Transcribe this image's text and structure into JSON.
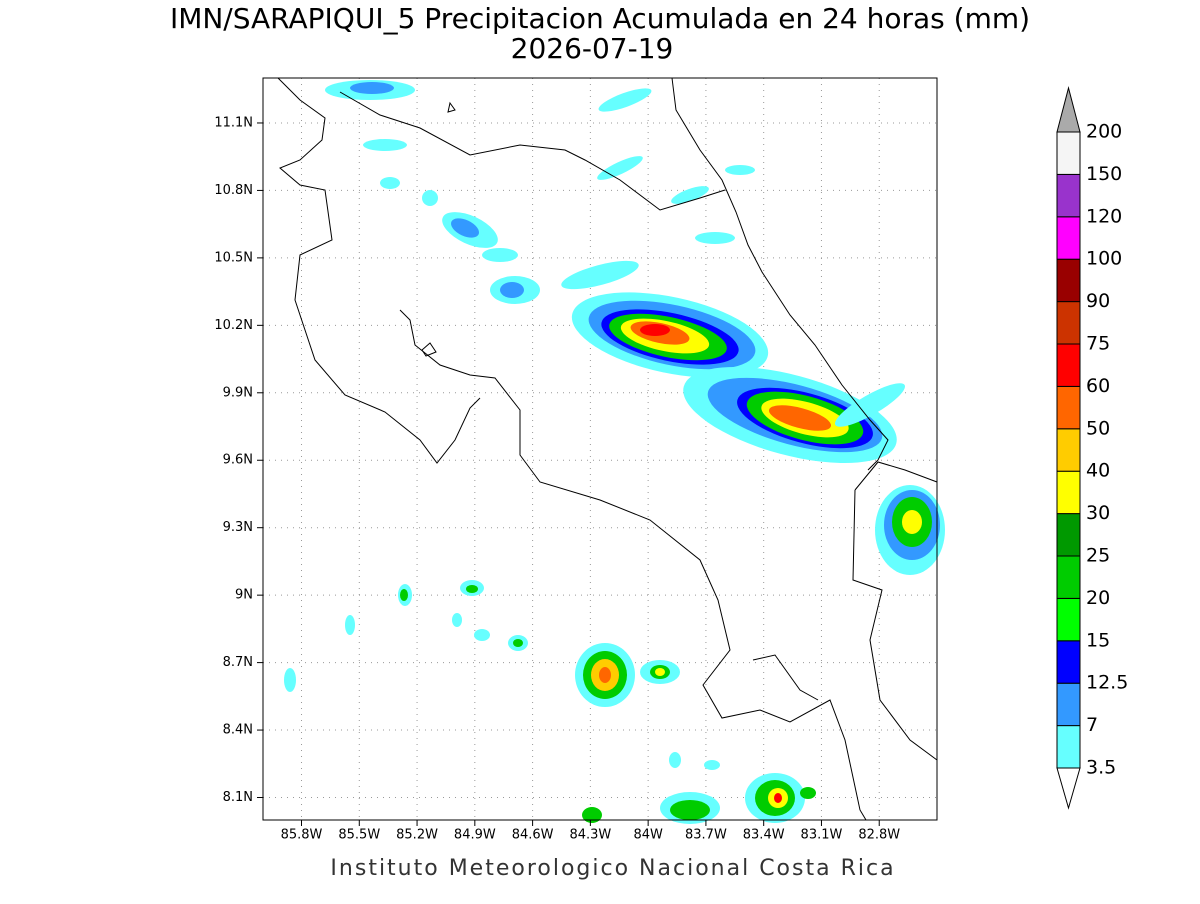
{
  "map": {
    "title": "IMN/SARAPIQUI_5 Precipitacion Acumulada en 24 horas (mm)",
    "subtitle": "2026-07-19",
    "footer": "Instituto Meteorologico Nacional Costa Rica",
    "xlim": [
      -86.0,
      -82.5
    ],
    "ylim": [
      8.0,
      11.3
    ],
    "xticks": [
      {
        "value": -85.8,
        "label": "85.8W"
      },
      {
        "value": -85.5,
        "label": "85.5W"
      },
      {
        "value": -85.2,
        "label": "85.2W"
      },
      {
        "value": -84.9,
        "label": "84.9W"
      },
      {
        "value": -84.6,
        "label": "84.6W"
      },
      {
        "value": -84.3,
        "label": "84.3W"
      },
      {
        "value": -84.0,
        "label": "84W"
      },
      {
        "value": -83.7,
        "label": "83.7W"
      },
      {
        "value": -83.4,
        "label": "83.4W"
      },
      {
        "value": -83.1,
        "label": "83.1W"
      },
      {
        "value": -82.8,
        "label": "82.8W"
      }
    ],
    "yticks": [
      {
        "value": 8.1,
        "label": "8.1N"
      },
      {
        "value": 8.4,
        "label": "8.4N"
      },
      {
        "value": 8.7,
        "label": "8.7N"
      },
      {
        "value": 9.0,
        "label": "9N"
      },
      {
        "value": 9.3,
        "label": "9.3N"
      },
      {
        "value": 9.6,
        "label": "9.6N"
      },
      {
        "value": 9.9,
        "label": "9.9N"
      },
      {
        "value": 10.2,
        "label": "10.2N"
      },
      {
        "value": 10.5,
        "label": "10.5N"
      },
      {
        "value": 10.8,
        "label": "10.8N"
      },
      {
        "value": 11.1,
        "label": "11.1N"
      }
    ],
    "grid": true,
    "colorbar": {
      "levels": [
        3.5,
        7,
        12.5,
        15,
        20,
        25,
        30,
        40,
        50,
        60,
        75,
        90,
        100,
        120,
        150,
        200
      ],
      "colors": [
        "#66ffff",
        "#3399ff",
        "#0000ff",
        "#00ff00",
        "#00cc00",
        "#009900",
        "#ffff00",
        "#ffcc00",
        "#ff6600",
        "#ff0000",
        "#cc3300",
        "#990000",
        "#ff00ff",
        "#9933cc",
        "#f5f5f5"
      ],
      "over_color": "#aaaaaa",
      "under_color": "#ffffff"
    }
  }
}
